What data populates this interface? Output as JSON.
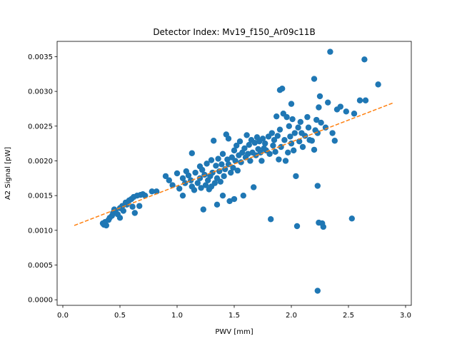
{
  "colors": {
    "points": "#1f77b4",
    "fit_line": "#ff7f0e",
    "axes": "#000000",
    "background": "#ffffff"
  },
  "chart_data": {
    "type": "scatter",
    "title": "Detector Index: Mv19_f150_Ar09c11B",
    "xlabel": "PWV [mm]",
    "ylabel": "A2 Signal [pW]",
    "xlim": [
      -0.05,
      3.05
    ],
    "ylim": [
      -8e-05,
      0.00372
    ],
    "x_ticks": [
      0.0,
      0.5,
      1.0,
      1.5,
      2.0,
      2.5,
      3.0
    ],
    "x_tick_labels": [
      "0.0",
      "0.5",
      "1.0",
      "1.5",
      "2.0",
      "2.5",
      "3.0"
    ],
    "y_ticks": [
      0.0,
      0.0005,
      0.001,
      0.0015,
      0.002,
      0.0025,
      0.003,
      0.0035
    ],
    "y_tick_labels": [
      "0.0000",
      "0.0005",
      "0.0010",
      "0.0015",
      "0.0020",
      "0.0025",
      "0.0030",
      "0.0035"
    ],
    "fit_line": {
      "style": "dashed",
      "x": [
        0.1,
        2.9
      ],
      "y": [
        0.00107,
        0.00284
      ]
    },
    "points": [
      [
        0.35,
        0.0011
      ],
      [
        0.36,
        0.00108
      ],
      [
        0.37,
        0.00112
      ],
      [
        0.38,
        0.00107
      ],
      [
        0.4,
        0.00115
      ],
      [
        0.41,
        0.00118
      ],
      [
        0.43,
        0.00121
      ],
      [
        0.44,
        0.00125
      ],
      [
        0.45,
        0.0013
      ],
      [
        0.46,
        0.00128
      ],
      [
        0.48,
        0.00123
      ],
      [
        0.5,
        0.00118
      ],
      [
        0.5,
        0.00132
      ],
      [
        0.52,
        0.00135
      ],
      [
        0.53,
        0.00128
      ],
      [
        0.55,
        0.0014
      ],
      [
        0.56,
        0.00137
      ],
      [
        0.58,
        0.00143
      ],
      [
        0.6,
        0.00145
      ],
      [
        0.61,
        0.00134
      ],
      [
        0.62,
        0.00148
      ],
      [
        0.63,
        0.00125
      ],
      [
        0.65,
        0.0015
      ],
      [
        0.67,
        0.00135
      ],
      [
        0.68,
        0.00151
      ],
      [
        0.7,
        0.00152
      ],
      [
        0.72,
        0.0015
      ],
      [
        0.78,
        0.00156
      ],
      [
        0.82,
        0.00156
      ],
      [
        0.9,
        0.00178
      ],
      [
        0.93,
        0.00172
      ],
      [
        0.96,
        0.00165
      ],
      [
        1.0,
        0.00182
      ],
      [
        1.02,
        0.0016
      ],
      [
        1.05,
        0.00175
      ],
      [
        1.05,
        0.0015
      ],
      [
        1.07,
        0.00168
      ],
      [
        1.08,
        0.00185
      ],
      [
        1.1,
        0.00179
      ],
      [
        1.12,
        0.00172
      ],
      [
        1.13,
        0.00211
      ],
      [
        1.13,
        0.00163
      ],
      [
        1.15,
        0.00158
      ],
      [
        1.16,
        0.00183
      ],
      [
        1.18,
        0.00168
      ],
      [
        1.2,
        0.00192
      ],
      [
        1.2,
        0.00175
      ],
      [
        1.21,
        0.00161
      ],
      [
        1.22,
        0.00187
      ],
      [
        1.23,
        0.0013
      ],
      [
        1.24,
        0.0018
      ],
      [
        1.25,
        0.00165
      ],
      [
        1.26,
        0.00196
      ],
      [
        1.27,
        0.00172
      ],
      [
        1.28,
        0.00159
      ],
      [
        1.29,
        0.00178
      ],
      [
        1.3,
        0.00201
      ],
      [
        1.3,
        0.00163
      ],
      [
        1.31,
        0.00183
      ],
      [
        1.32,
        0.00229
      ],
      [
        1.33,
        0.00168
      ],
      [
        1.34,
        0.00193
      ],
      [
        1.35,
        0.00175
      ],
      [
        1.35,
        0.00137
      ],
      [
        1.36,
        0.00203
      ],
      [
        1.37,
        0.00185
      ],
      [
        1.38,
        0.0017
      ],
      [
        1.39,
        0.00195
      ],
      [
        1.4,
        0.0021
      ],
      [
        1.4,
        0.0015
      ],
      [
        1.41,
        0.00178
      ],
      [
        1.42,
        0.00188
      ],
      [
        1.43,
        0.00238
      ],
      [
        1.44,
        0.00202
      ],
      [
        1.45,
        0.00195
      ],
      [
        1.45,
        0.00232
      ],
      [
        1.46,
        0.00142
      ],
      [
        1.47,
        0.00183
      ],
      [
        1.48,
        0.00205
      ],
      [
        1.49,
        0.0019
      ],
      [
        1.5,
        0.00215
      ],
      [
        1.5,
        0.00145
      ],
      [
        1.51,
        0.002
      ],
      [
        1.52,
        0.00222
      ],
      [
        1.53,
        0.00186
      ],
      [
        1.54,
        0.00208
      ],
      [
        1.55,
        0.00228
      ],
      [
        1.56,
        0.00198
      ],
      [
        1.57,
        0.00212
      ],
      [
        1.58,
        0.0015
      ],
      [
        1.59,
        0.00218
      ],
      [
        1.6,
        0.00205
      ],
      [
        1.61,
        0.00237
      ],
      [
        1.62,
        0.0021
      ],
      [
        1.63,
        0.00223
      ],
      [
        1.64,
        0.002
      ],
      [
        1.65,
        0.0023
      ],
      [
        1.66,
        0.00212
      ],
      [
        1.67,
        0.00162
      ],
      [
        1.68,
        0.00226
      ],
      [
        1.69,
        0.00208
      ],
      [
        1.7,
        0.00234
      ],
      [
        1.71,
        0.00217
      ],
      [
        1.72,
        0.00228
      ],
      [
        1.73,
        0.00212
      ],
      [
        1.74,
        0.002
      ],
      [
        1.75,
        0.00232
      ],
      [
        1.76,
        0.00218
      ],
      [
        1.77,
        0.00225
      ],
      [
        1.78,
        0.00215
      ],
      [
        1.8,
        0.00235
      ],
      [
        1.81,
        0.0021
      ],
      [
        1.82,
        0.00116
      ],
      [
        1.83,
        0.0024
      ],
      [
        1.84,
        0.00222
      ],
      [
        1.85,
        0.0023
      ],
      [
        1.86,
        0.00213
      ],
      [
        1.87,
        0.00264
      ],
      [
        1.88,
        0.00236
      ],
      [
        1.89,
        0.00202
      ],
      [
        1.9,
        0.00302
      ],
      [
        1.9,
        0.00245
      ],
      [
        1.91,
        0.0022
      ],
      [
        1.92,
        0.00304
      ],
      [
        1.93,
        0.00268
      ],
      [
        1.94,
        0.0023
      ],
      [
        1.95,
        0.002
      ],
      [
        1.96,
        0.00263
      ],
      [
        1.97,
        0.00212
      ],
      [
        1.98,
        0.0025
      ],
      [
        1.99,
        0.00235
      ],
      [
        2.0,
        0.00282
      ],
      [
        2.0,
        0.00225
      ],
      [
        2.01,
        0.0026
      ],
      [
        2.02,
        0.00215
      ],
      [
        2.03,
        0.0024
      ],
      [
        2.04,
        0.00178
      ],
      [
        2.05,
        0.00106
      ],
      [
        2.06,
        0.00248
      ],
      [
        2.07,
        0.00228
      ],
      [
        2.08,
        0.00256
      ],
      [
        2.09,
        0.0024
      ],
      [
        2.1,
        0.0022
      ],
      [
        2.12,
        0.00236
      ],
      [
        2.14,
        0.00263
      ],
      [
        2.15,
        0.00248
      ],
      [
        2.16,
        0.0023
      ],
      [
        2.18,
        0.00229
      ],
      [
        2.2,
        0.00216
      ],
      [
        2.2,
        0.00318
      ],
      [
        2.21,
        0.00244
      ],
      [
        2.22,
        0.00259
      ],
      [
        2.23,
        0.00164
      ],
      [
        2.23,
        0.0024
      ],
      [
        2.23,
        0.00013
      ],
      [
        2.24,
        0.00277
      ],
      [
        2.24,
        0.00111
      ],
      [
        2.25,
        0.00293
      ],
      [
        2.26,
        0.00255
      ],
      [
        2.27,
        0.0011
      ],
      [
        2.28,
        0.00105
      ],
      [
        2.3,
        0.00248
      ],
      [
        2.32,
        0.00284
      ],
      [
        2.34,
        0.00357
      ],
      [
        2.36,
        0.0024
      ],
      [
        2.38,
        0.00229
      ],
      [
        2.4,
        0.00274
      ],
      [
        2.43,
        0.00278
      ],
      [
        2.48,
        0.00271
      ],
      [
        2.53,
        0.00117
      ],
      [
        2.55,
        0.00268
      ],
      [
        2.6,
        0.00287
      ],
      [
        2.64,
        0.00346
      ],
      [
        2.65,
        0.00287
      ],
      [
        2.76,
        0.0031
      ]
    ]
  }
}
